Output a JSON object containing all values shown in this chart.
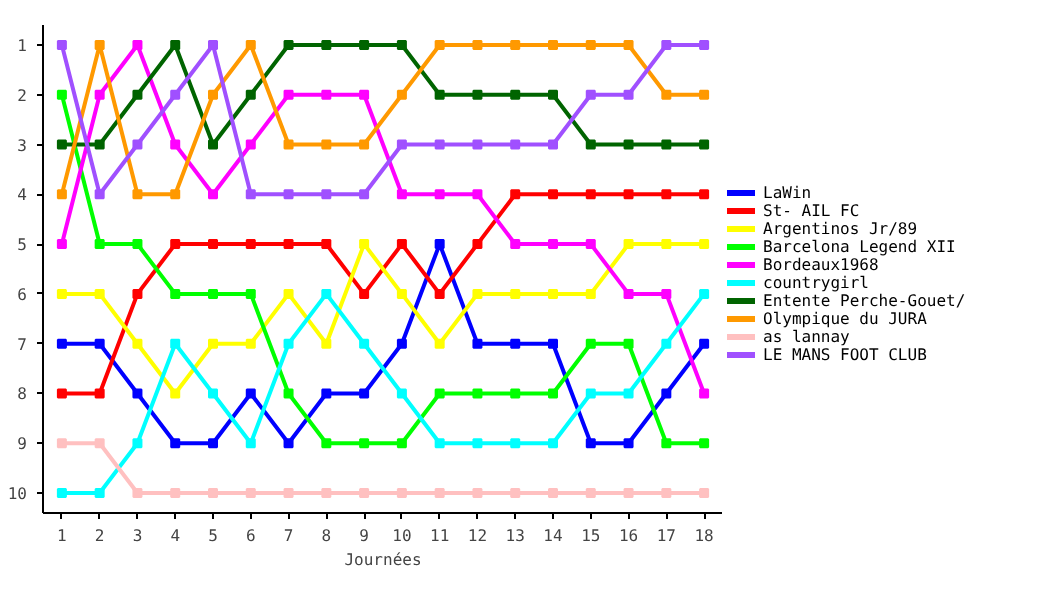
{
  "chart_data": {
    "type": "line",
    "xlabel": "Journées",
    "x": [
      1,
      2,
      3,
      4,
      5,
      6,
      7,
      8,
      9,
      10,
      11,
      12,
      13,
      14,
      15,
      16,
      17,
      18
    ],
    "xlim": [
      0.5,
      18.5
    ],
    "xticks": [
      1,
      2,
      3,
      4,
      5,
      6,
      7,
      8,
      9,
      10,
      11,
      12,
      13,
      14,
      15,
      16,
      17,
      18
    ],
    "ylim": [
      10.4,
      0.6
    ],
    "yticks": [
      1,
      2,
      3,
      4,
      5,
      6,
      7,
      8,
      9,
      10
    ],
    "grid": false,
    "legend": "right",
    "marker": "square",
    "line_style": "solid",
    "series": [
      {
        "name": "LaWin",
        "color": "#0000ff",
        "values": [
          7,
          7,
          8,
          9,
          9,
          8,
          9,
          8,
          8,
          7,
          5,
          7,
          7,
          7,
          9,
          9,
          8,
          7
        ]
      },
      {
        "name": "St- AIL FC",
        "color": "#ff0000",
        "values": [
          8,
          8,
          6,
          5,
          5,
          5,
          5,
          5,
          6,
          5,
          6,
          5,
          4,
          4,
          4,
          4,
          4,
          4
        ]
      },
      {
        "name": "Argentinos Jr/89",
        "color": "#ffff00",
        "values": [
          6,
          6,
          7,
          8,
          7,
          7,
          6,
          7,
          5,
          6,
          7,
          6,
          6,
          6,
          6,
          5,
          5,
          5
        ]
      },
      {
        "name": "Barcelona Legend XII",
        "color": "#00ff00",
        "values": [
          2,
          5,
          5,
          6,
          6,
          6,
          8,
          9,
          9,
          9,
          8,
          8,
          8,
          8,
          7,
          7,
          9,
          9
        ]
      },
      {
        "name": "Bordeaux1968",
        "color": "#ff00ff",
        "values": [
          5,
          2,
          1,
          3,
          4,
          3,
          2,
          2,
          2,
          4,
          4,
          4,
          5,
          5,
          5,
          6,
          6,
          8
        ]
      },
      {
        "name": "countrygirl",
        "color": "#00ffff",
        "values": [
          10,
          10,
          9,
          7,
          8,
          9,
          7,
          6,
          7,
          8,
          9,
          9,
          9,
          9,
          8,
          8,
          7,
          6
        ]
      },
      {
        "name": "Entente Perche-Gouet/",
        "color": "#006400",
        "values": [
          3,
          3,
          2,
          1,
          3,
          2,
          1,
          1,
          1,
          1,
          2,
          2,
          2,
          2,
          3,
          3,
          3,
          3
        ]
      },
      {
        "name": "Olympique du JURA",
        "color": "#ff9900",
        "values": [
          4,
          1,
          4,
          4,
          2,
          1,
          3,
          3,
          3,
          2,
          1,
          1,
          1,
          1,
          1,
          1,
          2,
          2
        ]
      },
      {
        "name": "as lannay",
        "color": "#ffc0c0",
        "values": [
          9,
          9,
          10,
          10,
          10,
          10,
          10,
          10,
          10,
          10,
          10,
          10,
          10,
          10,
          10,
          10,
          10,
          10
        ]
      },
      {
        "name": "LE MANS FOOT CLUB",
        "color": "#a050ff",
        "values": [
          1,
          4,
          3,
          2,
          1,
          4,
          4,
          4,
          4,
          3,
          3,
          3,
          3,
          3,
          2,
          2,
          1,
          1
        ]
      }
    ]
  }
}
